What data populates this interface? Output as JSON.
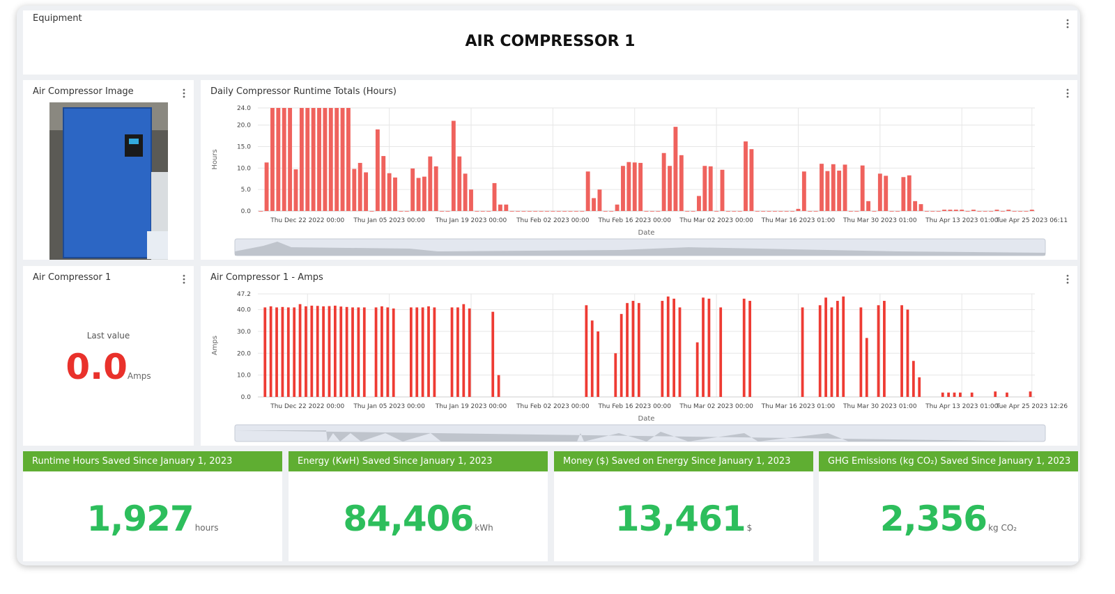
{
  "header": {
    "section": "Equipment",
    "title": "AIR COMPRESSOR 1"
  },
  "image_panel": {
    "title": "Air Compressor Image"
  },
  "last_value_panel": {
    "title": "Air Compressor 1",
    "caption": "Last value",
    "value": "0.0",
    "unit": "Amps"
  },
  "chart_data": [
    {
      "type": "bar",
      "title": "Daily Compressor Runtime Totals (Hours)",
      "x_label": "Date",
      "y_label": "Hours",
      "color": "#ef625d",
      "grid": true,
      "categories": [
        null,
        null,
        null,
        null,
        null,
        null,
        null,
        null,
        "Thu Dec 22 2022 00:00",
        null,
        null,
        null,
        null,
        null,
        null,
        null,
        null,
        null,
        null,
        null,
        null,
        null,
        "Thu Jan 05 2023 00:00",
        null,
        null,
        null,
        null,
        null,
        null,
        null,
        null,
        null,
        null,
        null,
        null,
        null,
        "Thu Jan 19 2023 00:00",
        null,
        null,
        null,
        null,
        null,
        null,
        null,
        null,
        null,
        null,
        null,
        null,
        null,
        "Thu Feb 02 2023 00:00",
        null,
        null,
        null,
        null,
        null,
        null,
        null,
        null,
        null,
        null,
        null,
        null,
        null,
        "Thu Feb 16 2023 00:00",
        null,
        null,
        null,
        null,
        null,
        null,
        null,
        null,
        null,
        null,
        null,
        null,
        null,
        "Thu Mar 02 2023 00:00",
        null,
        null,
        null,
        null,
        null,
        null,
        null,
        null,
        null,
        null,
        null,
        null,
        null,
        "Thu Mar 16 2023 01:00",
        null,
        null,
        null,
        null,
        null,
        null,
        null,
        null,
        null,
        null,
        null,
        null,
        null,
        "Thu Mar 30 2023 01:00",
        null,
        null,
        null,
        null,
        null,
        null,
        null,
        null,
        null,
        null,
        null,
        null,
        null,
        "Thu Apr 13 2023 01:00",
        null,
        null,
        null,
        null,
        null,
        null,
        null,
        null,
        null,
        null,
        null,
        "Tue Apr 25 2023 06:11"
      ],
      "values": [
        0,
        11.3,
        24,
        24,
        24,
        24,
        9.7,
        24,
        24,
        24,
        24,
        24,
        24,
        24,
        24,
        24,
        9.8,
        11.2,
        9,
        0,
        19,
        12.8,
        8.8,
        7.8,
        0,
        0,
        9.9,
        7.7,
        8,
        12.7,
        10.4,
        0,
        0,
        21,
        12.7,
        8.7,
        5,
        0,
        0,
        0,
        6.5,
        1.5,
        1.5,
        0,
        0,
        0,
        0,
        0,
        0,
        0,
        0,
        0,
        0,
        0,
        0,
        0,
        9.2,
        3,
        5,
        0,
        0,
        1.5,
        10.5,
        11.4,
        11.3,
        11.2,
        0,
        0,
        0,
        13.5,
        10.5,
        19.6,
        13,
        0,
        0,
        3.5,
        10.5,
        10.4,
        0,
        9.6,
        0,
        0,
        0,
        16.2,
        14.4,
        0,
        0,
        0,
        0,
        0,
        0,
        0,
        0.5,
        9.2,
        0,
        0,
        11,
        9.3,
        10.9,
        9.4,
        10.8,
        0,
        0,
        10.6,
        2.3,
        0,
        8.7,
        8.2,
        0,
        0,
        7.9,
        8.3,
        2.3,
        1.6,
        0,
        0,
        0,
        0.3,
        0.3,
        0.3,
        0.3,
        0,
        0.3,
        0,
        0,
        0,
        0.3,
        0,
        0.3,
        0,
        0,
        0,
        0.3
      ],
      "ylim": [
        0,
        24
      ],
      "yticks": [
        {
          "value": 0,
          "label": "0.0"
        },
        {
          "value": 5,
          "label": "5.0"
        },
        {
          "value": 10,
          "label": "10.0"
        },
        {
          "value": 15,
          "label": "15.0"
        },
        {
          "value": 20,
          "label": "20.0"
        },
        {
          "value": 24,
          "label": "24.0"
        }
      ]
    },
    {
      "type": "line",
      "title": "Air Compressor 1 - Amps",
      "x_label": "Date",
      "y_label": "Amps",
      "color": "#ee3b33",
      "grid": true,
      "categories": [
        null,
        null,
        null,
        null,
        null,
        null,
        null,
        null,
        "Thu Dec 22 2022 00:00",
        null,
        null,
        null,
        null,
        null,
        null,
        null,
        null,
        null,
        null,
        null,
        null,
        null,
        "Thu Jan 05 2023 00:00",
        null,
        null,
        null,
        null,
        null,
        null,
        null,
        null,
        null,
        null,
        null,
        null,
        null,
        "Thu Jan 19 2023 00:00",
        null,
        null,
        null,
        null,
        null,
        null,
        null,
        null,
        null,
        null,
        null,
        null,
        null,
        "Thu Feb 02 2023 00:00",
        null,
        null,
        null,
        null,
        null,
        null,
        null,
        null,
        null,
        null,
        null,
        null,
        null,
        "Thu Feb 16 2023 00:00",
        null,
        null,
        null,
        null,
        null,
        null,
        null,
        null,
        null,
        null,
        null,
        null,
        null,
        "Thu Mar 02 2023 00:00",
        null,
        null,
        null,
        null,
        null,
        null,
        null,
        null,
        null,
        null,
        null,
        null,
        null,
        "Thu Mar 16 2023 01:00",
        null,
        null,
        null,
        null,
        null,
        null,
        null,
        null,
        null,
        null,
        null,
        null,
        null,
        "Thu Mar 30 2023 01:00",
        null,
        null,
        null,
        null,
        null,
        null,
        null,
        null,
        null,
        null,
        null,
        null,
        null,
        "Thu Apr 13 2023 01:00",
        null,
        null,
        null,
        null,
        null,
        null,
        null,
        null,
        null,
        null,
        null,
        "Tue Apr 25 2023 12:26"
      ],
      "values": [
        0,
        41,
        41.5,
        41,
        41.2,
        41,
        41,
        42.5,
        41.5,
        41.8,
        41.7,
        41.5,
        41.6,
        41.8,
        41.4,
        41.2,
        41,
        41,
        41,
        0,
        41,
        41.5,
        41,
        40.5,
        0,
        0,
        41,
        41,
        41,
        41.5,
        41,
        0,
        0,
        41,
        41,
        42.5,
        40.5,
        0,
        0,
        0,
        39,
        10,
        0,
        0,
        0,
        0,
        0,
        0,
        0,
        0,
        0,
        0,
        0,
        0,
        0,
        0,
        42,
        35,
        30,
        0,
        0,
        20,
        38,
        43,
        44,
        43,
        0,
        0,
        0,
        44,
        46,
        45,
        41,
        0,
        0,
        25,
        45.5,
        45,
        0,
        41,
        0,
        0,
        0,
        45,
        44,
        0,
        0,
        0,
        0,
        0,
        0,
        0,
        0,
        41,
        0,
        0,
        42,
        45.5,
        41,
        44,
        46,
        0,
        0,
        41,
        27,
        0,
        42,
        44,
        0,
        0,
        42,
        40,
        16.5,
        9,
        0,
        0,
        0,
        2,
        2,
        2,
        2,
        0,
        2,
        0,
        0,
        0,
        2.5,
        0,
        2,
        0,
        0,
        0,
        2.5
      ],
      "ylim": [
        0,
        47.2
      ],
      "yticks": [
        {
          "value": 0,
          "label": "0.0"
        },
        {
          "value": 10,
          "label": "10.0"
        },
        {
          "value": 20,
          "label": "20.0"
        },
        {
          "value": 30,
          "label": "30.0"
        },
        {
          "value": 40,
          "label": "40.0"
        },
        {
          "value": 47.2,
          "label": "47.2"
        }
      ]
    }
  ],
  "kpis": [
    {
      "title": "Runtime Hours Saved Since January 1, 2023",
      "value": "1,927",
      "unit": "hours"
    },
    {
      "title": "Energy (KwH) Saved Since January 1, 2023",
      "value": "84,406",
      "unit": "kWh"
    },
    {
      "title": "Money ($) Saved on Energy Since January 1, 2023",
      "value": "13,461",
      "unit": "$"
    },
    {
      "title": "GHG Emissions (kg CO₂) Saved Since January 1, 2023",
      "value": "2,356",
      "unit": "kg CO₂"
    }
  ]
}
